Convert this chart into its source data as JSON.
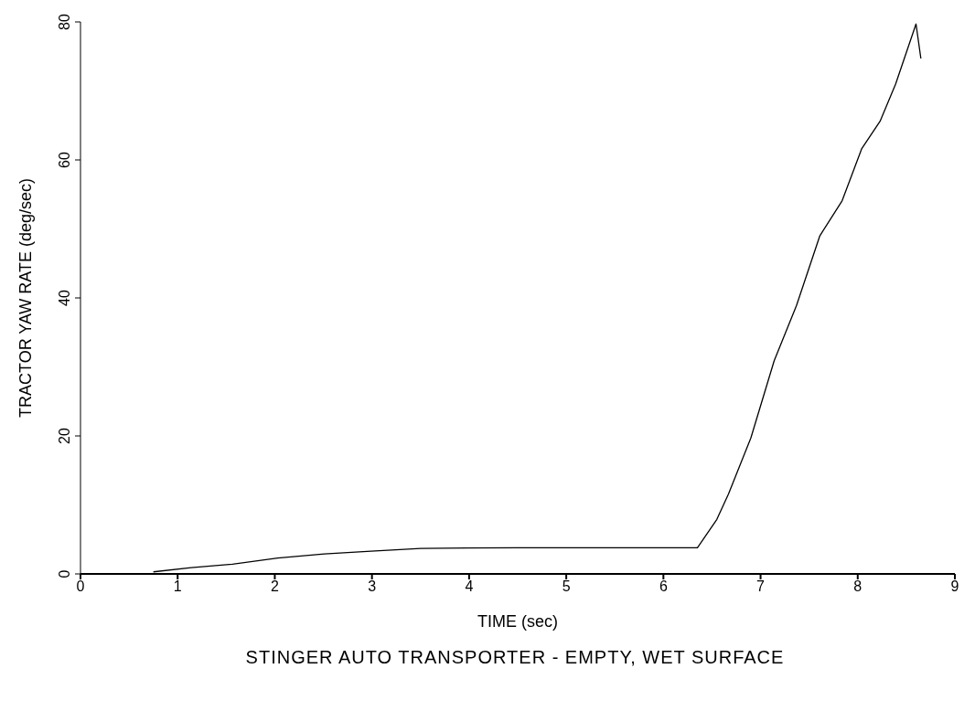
{
  "chart_data": {
    "type": "line",
    "title": "STINGER AUTO TRANSPORTER - EMPTY, WET SURFACE",
    "xlabel": "TIME (sec)",
    "ylabel": "TRACTOR YAW RATE (deg/sec)",
    "x": [
      0.75,
      1.14,
      1.56,
      2.03,
      2.51,
      2.99,
      3.5,
      4.5,
      5.5,
      6.35,
      6.55,
      6.67,
      6.9,
      7.14,
      7.37,
      7.61,
      7.84,
      8.04,
      8.23,
      8.39,
      8.6,
      8.65
    ],
    "series": [
      {
        "color": "#000000",
        "values": [
          0.3,
          0.9,
          1.4,
          2.3,
          2.9,
          3.3,
          3.7,
          3.8,
          3.8,
          3.8,
          7.9,
          11.6,
          19.7,
          30.9,
          38.9,
          49,
          54.1,
          61.6,
          65.6,
          71,
          79.7,
          74.7
        ]
      }
    ],
    "xlim": [
      0,
      9
    ],
    "xticks": [
      0,
      1,
      2,
      3,
      4,
      5,
      6,
      7,
      8,
      9
    ],
    "ylim": [
      0,
      80
    ],
    "yticks": [
      0,
      20,
      40,
      60,
      80
    ],
    "grid": false,
    "legend": false,
    "marker": "none",
    "line_style": "solid"
  }
}
